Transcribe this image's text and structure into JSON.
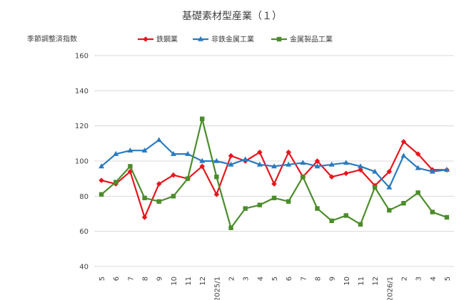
{
  "chart_data": {
    "type": "line",
    "title": "基礎素材型産業（１）",
    "ylabel": "季節調整済指数",
    "ylim": [
      40,
      160
    ],
    "yticks": [
      40,
      60,
      80,
      100,
      120,
      140,
      160
    ],
    "grid": true,
    "legend_position": "top",
    "categories": [
      "5",
      "6",
      "7",
      "8",
      "9",
      "10",
      "11",
      "12",
      "2025/1",
      "2",
      "3",
      "4",
      "5",
      "6",
      "7",
      "8",
      "9",
      "10",
      "11",
      "12",
      "2026/1",
      "2",
      "3",
      "4",
      "5"
    ],
    "series": [
      {
        "name": "鉄鋼業",
        "color": "#e8151d",
        "marker": "diamond",
        "values": [
          89,
          87,
          94,
          68,
          87,
          92,
          90,
          97,
          81,
          103,
          100,
          105,
          87,
          105,
          91,
          100,
          91,
          93,
          95,
          86,
          94,
          111,
          104,
          95,
          95
        ]
      },
      {
        "name": "非鉄金属工業",
        "color": "#2a7bc0",
        "marker": "triangle",
        "values": [
          97,
          104,
          106,
          106,
          112,
          104,
          104,
          100,
          100,
          98,
          101,
          98,
          97,
          98,
          99,
          97,
          98,
          99,
          97,
          94,
          85,
          103,
          96,
          94,
          95
        ]
      },
      {
        "name": "金属製品工業",
        "color": "#4c8c2b",
        "marker": "square",
        "values": [
          81,
          88,
          97,
          79,
          77,
          80,
          90,
          124,
          91,
          62,
          73,
          75,
          79,
          77,
          91,
          73,
          66,
          69,
          64,
          85,
          72,
          76,
          82,
          71,
          68
        ]
      }
    ]
  }
}
